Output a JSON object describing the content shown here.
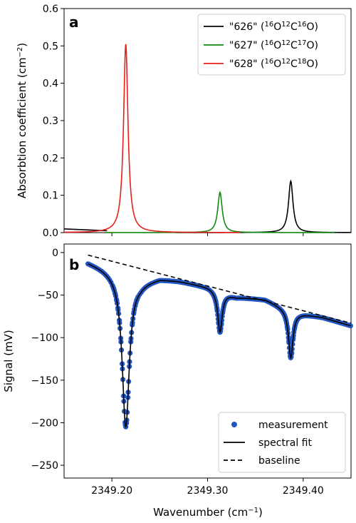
{
  "chart_data": [
    {
      "type": "line",
      "panel_label": "a",
      "xlim": [
        2349.15,
        2349.45
      ],
      "ylim": [
        0,
        0.6
      ],
      "ylabel": "Absorbtion coefficient (cm",
      "ylabel_sup": "−2",
      "ylabel_end": ")",
      "xticks": [
        2349.2,
        2349.3,
        2349.4
      ],
      "yticks": [
        0.0,
        0.1,
        0.2,
        0.3,
        0.4,
        0.5,
        0.6
      ],
      "ytick_labels": [
        "0.0",
        "0.1",
        "0.2",
        "0.3",
        "0.4",
        "0.5",
        "0.6"
      ],
      "legend_position": "top-right",
      "series": [
        {
          "name": "\"626\" (16O12C16O)",
          "name_parts": [
            "\"626\" (",
            "16",
            "O",
            "12",
            "C",
            "16",
            "O)"
          ],
          "color": "#000000",
          "peaks": [
            {
              "center": 2349.387,
              "amplitude": 0.138,
              "hwhm": 0.0028
            }
          ],
          "edge_line": {
            "x": [
              2349.15,
              2349.195
            ],
            "y": [
              0.01,
              0.005
            ]
          }
        },
        {
          "name": "\"627\" (16O12C17O)",
          "name_parts": [
            "\"627\" (",
            "16",
            "O",
            "12",
            "C",
            "17",
            "O)"
          ],
          "color": "#118811",
          "peaks": [
            {
              "center": 2349.313,
              "amplitude": 0.108,
              "hwhm": 0.0028
            }
          ]
        },
        {
          "name": "\"628\" (16O12C18O)",
          "name_parts": [
            "\"628\" (",
            "16",
            "O",
            "12",
            "C",
            "18",
            "O)"
          ],
          "color": "#e8201a",
          "peaks": [
            {
              "center": 2349.2145,
              "amplitude": 0.505,
              "hwhm": 0.0028
            }
          ]
        }
      ]
    },
    {
      "type": "line",
      "panel_label": "b",
      "xlim": [
        2349.15,
        2349.45
      ],
      "ylim": [
        -265,
        10
      ],
      "xlabel": "Wavenumber (cm",
      "xlabel_sup": "−1",
      "xlabel_end": ")",
      "ylabel": "Signal (mV)",
      "xticks": [
        2349.2,
        2349.3,
        2349.4
      ],
      "xtick_labels": [
        "2349.20",
        "2349.30",
        "2349.40"
      ],
      "yticks": [
        0,
        -50,
        -100,
        -150,
        -200,
        -250
      ],
      "ytick_labels": [
        "0",
        "−50",
        "−100",
        "−150",
        "−200",
        "−250"
      ],
      "legend_position": "bottom-right",
      "x_range": [
        2349.175,
        2349.45
      ],
      "baseline": {
        "x": [
          2349.175,
          2349.45
        ],
        "y": [
          -3,
          -83
        ]
      },
      "offset_curve": {
        "x": [
          2349.175,
          2349.19,
          2349.205,
          2349.23,
          2349.25,
          2349.27,
          2349.3,
          2349.33,
          2349.36,
          2349.39,
          2349.42,
          2349.45
        ],
        "y": [
          -11,
          -17,
          -24,
          -34,
          -30,
          -33,
          -40,
          -52,
          -55,
          -70,
          -76,
          -86
        ]
      },
      "dips": [
        {
          "center": 2349.2145,
          "depth": 177,
          "hwhm": 0.0045
        },
        {
          "center": 2349.313,
          "depth": 48,
          "hwhm": 0.0028
        },
        {
          "center": 2349.387,
          "depth": 55,
          "hwhm": 0.0028
        }
      ],
      "series": [
        {
          "name": "measurement",
          "color": "#2155c0",
          "marker": "circle"
        },
        {
          "name": "spectral fit",
          "color": "#000000",
          "style": "solid"
        },
        {
          "name": "baseline",
          "color": "#000000",
          "style": "dashed"
        }
      ]
    }
  ]
}
